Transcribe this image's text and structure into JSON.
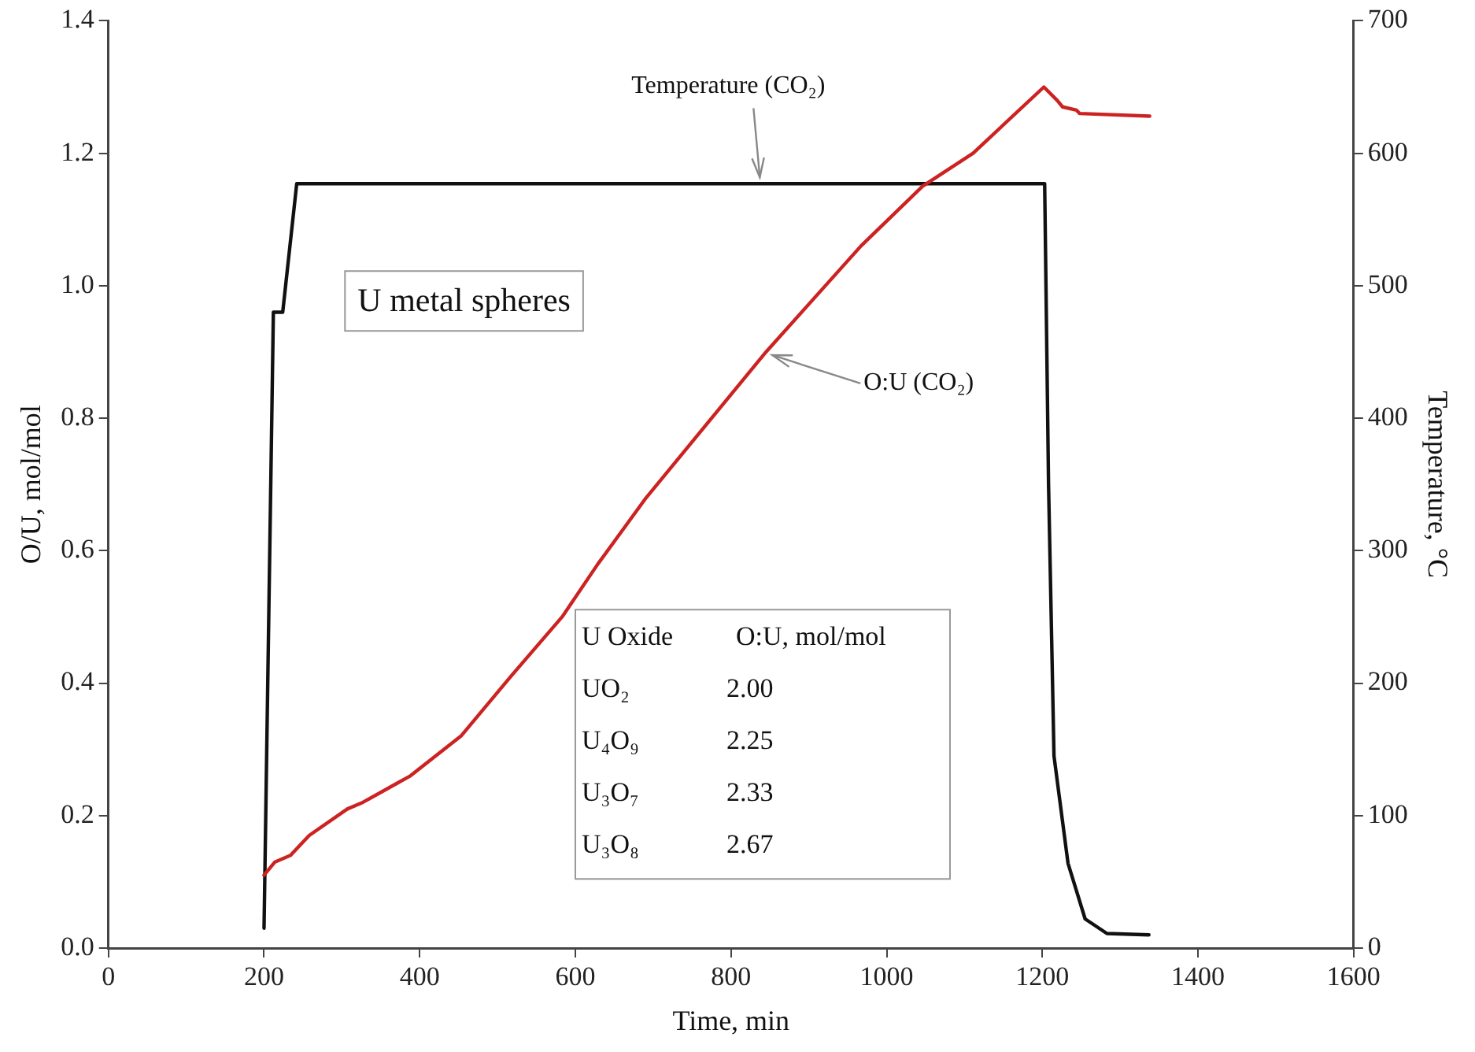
{
  "chart_data": {
    "type": "line",
    "xlabel": "Time, min",
    "ylabel": "O/U, mol/mol",
    "y2label": "Temperature, °C",
    "xlim": [
      0,
      1600
    ],
    "xticks": [
      0,
      200,
      400,
      600,
      800,
      1000,
      1200,
      1400,
      1600
    ],
    "ylim": [
      0,
      1.4
    ],
    "yticks": [
      {
        "value": 0,
        "label": "0.0"
      },
      0.2,
      0.4,
      0.6,
      0.8,
      {
        "value": 1,
        "label": "1.0"
      },
      1.2,
      1.4
    ],
    "y2lim": [
      0,
      700
    ],
    "y2ticks": [
      0,
      100,
      200,
      300,
      400,
      500,
      600,
      700
    ],
    "grid": false,
    "legend": false,
    "marker": "none",
    "line_style": "solid",
    "series": [
      {
        "color": "#cc2222",
        "axis": "y",
        "x": [
          200,
          214,
          234,
          258,
          307,
          327,
          388,
          453,
          517,
          583,
          629,
          691,
          845,
          967,
          1046,
          1111,
          1202,
          1219,
          1226,
          1244,
          1248,
          1338
        ],
        "values": [
          0.11,
          0.13,
          0.14,
          0.17,
          0.21,
          0.22,
          0.26,
          0.32,
          0.41,
          0.5,
          0.58,
          0.68,
          0.9,
          1.06,
          1.15,
          1.2,
          1.3,
          1.28,
          1.27,
          1.265,
          1.26,
          1.256
        ]
      },
      {
        "color": "#111111",
        "axis": "y2",
        "x": [
          200,
          212,
          224,
          242,
          1203,
          1208,
          1215,
          1233,
          1255,
          1283,
          1337
        ],
        "values": [
          15,
          480,
          480,
          577,
          577,
          350,
          145,
          64,
          22,
          11,
          10
        ]
      }
    ],
    "annotations": [
      "U metal spheres",
      {
        "text": "Temperature (CO₂)",
        "x": 837,
        "y": 1.154
      },
      {
        "text": "O:U (CO₂)",
        "x": 845,
        "y": 0.9
      },
      "U Oxide",
      "O:U, mol/mol",
      "UO₂",
      "2.00",
      "U₄O₉",
      "2.25",
      "U₃O₇",
      "2.33",
      "U₃O₈",
      "2.67"
    ]
  }
}
